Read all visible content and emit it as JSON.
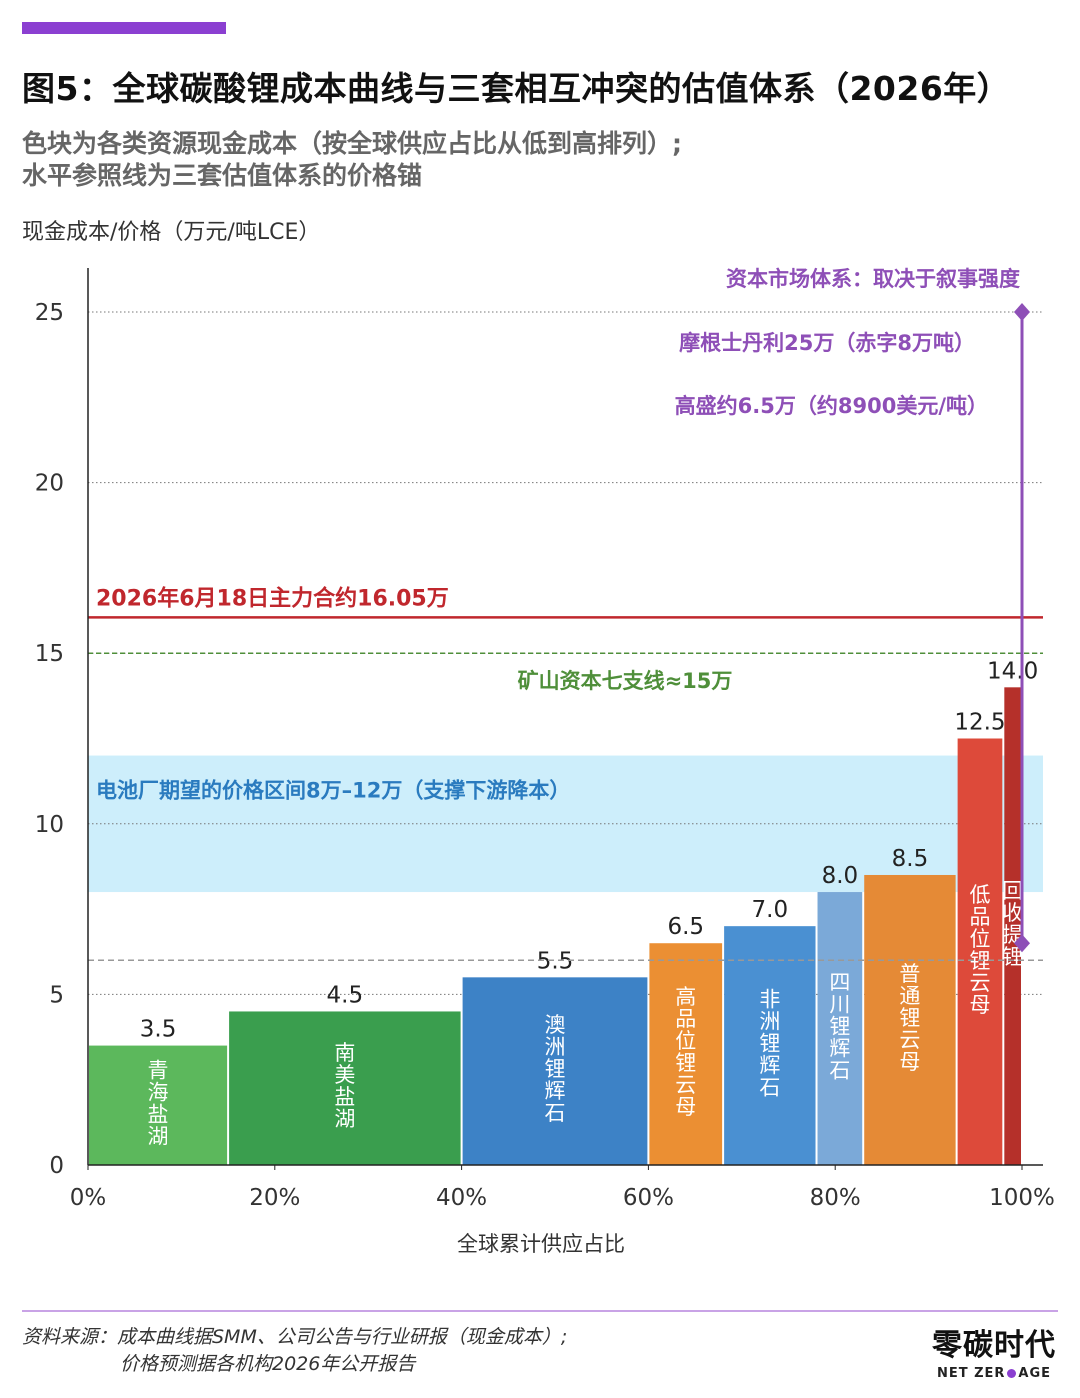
{
  "header": {
    "title": "图5：全球碳酸锂成本曲线与三套相互冲突的估值体系（2026年）",
    "subtitle_lines": [
      "色块为各类资源现金成本（按全球供应占比从低到高排列）;",
      "水平参照线为三套估值体系的价格锚"
    ],
    "accent_color": "#8b3fd1"
  },
  "chart_data": {
    "type": "bar",
    "title": "",
    "ylabel": "现金成本/价格（万元/吨LCE）",
    "xlabel": "全球累计供应占比",
    "ylim": [
      0,
      25
    ],
    "xlim": [
      0,
      100
    ],
    "y_ticks": [
      0,
      5,
      10,
      15,
      20,
      25
    ],
    "x_ticks": [
      "0%",
      "20%",
      "40%",
      "60%",
      "80%",
      "100%"
    ],
    "grid": true,
    "bars": [
      {
        "name": "青海盐湖",
        "x_start": 0,
        "x_end": 15,
        "value": 3.5,
        "value_label": "3.5",
        "color": "#5cb85c"
      },
      {
        "name": "南美盐湖",
        "x_start": 15,
        "x_end": 40,
        "value": 4.5,
        "value_label": "4.5",
        "color": "#3a9e4e"
      },
      {
        "name": "澳洲锂辉石",
        "x_start": 40,
        "x_end": 60,
        "value": 5.5,
        "value_label": "5.5",
        "color": "#3d82c6"
      },
      {
        "name": "高品位锂云母",
        "x_start": 60,
        "x_end": 68,
        "value": 6.5,
        "value_label": "6.5",
        "color": "#eb8f33"
      },
      {
        "name": "非洲锂辉石",
        "x_start": 68,
        "x_end": 78,
        "value": 7.0,
        "value_label": "7.0",
        "color": "#4a90d2"
      },
      {
        "name": "四川锂辉石",
        "x_start": 78,
        "x_end": 83,
        "value": 8.0,
        "value_label": "8.0",
        "color": "#7ba9d8"
      },
      {
        "name": "普通锂云母",
        "x_start": 83,
        "x_end": 93,
        "value": 8.5,
        "value_label": "8.5",
        "color": "#e58a36"
      },
      {
        "name": "低品位锂云母",
        "x_start": 93,
        "x_end": 98,
        "value": 12.5,
        "value_label": "12.5",
        "color": "#dd4a3a"
      },
      {
        "name": "回收提锂",
        "x_start": 98,
        "x_end": 100,
        "value": 14.0,
        "value_label": "14.0",
        "color": "#b5302a"
      }
    ],
    "reference_lines": [
      {
        "label": "2026年6月18日主力合约16.05万",
        "value": 16.05,
        "color": "#c0272d",
        "style": "solid"
      },
      {
        "label": "矿山资本七支线≈15万",
        "value": 15,
        "color": "#4f8f3a",
        "style": "dashed"
      },
      {
        "label": "",
        "value": 6,
        "color": "#999999",
        "style": "dashed"
      }
    ],
    "bands": [
      {
        "label": "电池厂期望的价格区间8万–12万（支撑下游降本）",
        "from": 8,
        "to": 12,
        "color": "#cdeefb",
        "label_color": "#2a7bbf"
      }
    ],
    "capital_market": {
      "title": "资本市场体系：取决于叙事强度",
      "x": 100,
      "top_value": 25,
      "bottom_value": 6.5,
      "color": "#8e4fb7",
      "annotations": [
        "摩根士丹利25万（赤字8万吨）",
        "高盛约6.5万（约8900美元/吨）"
      ]
    }
  },
  "footer": {
    "source_lines": [
      "资料来源：成本曲线据SMM、公司公告与行业研报（现金成本）;",
      "价格预测据各机构2026年公开报告"
    ],
    "logo_main": "零碳时代",
    "logo_sub_left": "NET ZER",
    "logo_sub_right": "AGE"
  }
}
